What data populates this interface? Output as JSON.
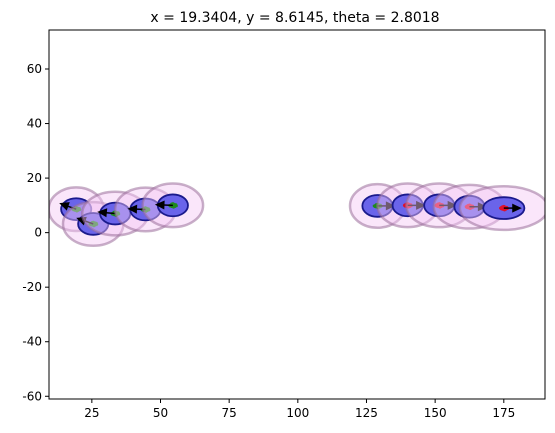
{
  "chart_data": {
    "type": "scatter",
    "title": "x = 19.3404, y = 8.6145, theta = 2.8018",
    "xlabel": "",
    "ylabel": "",
    "xlim": [
      9.4,
      190
    ],
    "ylim": [
      -61,
      74.3
    ],
    "xticks": [
      25,
      50,
      75,
      100,
      125,
      150,
      175
    ],
    "yticks": [
      -60,
      -40,
      -20,
      0,
      20,
      40,
      60
    ],
    "grid": false,
    "colors": {
      "uncertainty_fill": "#f5c8f5",
      "uncertainty_edge": "#9b6f9b",
      "robot_fill": "#6a64ea",
      "robot_edge": "#1a1a8c",
      "particle_green": "#1e8a1e",
      "particle_red": "#e0102a",
      "arrow": "#000000"
    },
    "series": [
      {
        "name": "",
        "points": [
          {
            "x": 19.3,
            "y": 8.6,
            "theta": 2.8018,
            "robot_rx": 5.5,
            "robot_ry": 4.0,
            "unc_rx": 10,
            "unc_ry": 8,
            "particle": "green"
          },
          {
            "x": 25.5,
            "y": 3.2,
            "theta": 2.8,
            "robot_rx": 5.5,
            "robot_ry": 4.0,
            "unc_rx": 11,
            "unc_ry": 8,
            "particle": "green"
          },
          {
            "x": 33.5,
            "y": 7.0,
            "theta": 3.05,
            "robot_rx": 5.5,
            "robot_ry": 4.0,
            "unc_rx": 12,
            "unc_ry": 8,
            "particle": "green"
          },
          {
            "x": 44.5,
            "y": 8.5,
            "theta": 3.1,
            "robot_rx": 5.5,
            "robot_ry": 4.0,
            "unc_rx": 11,
            "unc_ry": 8,
            "particle": "green"
          },
          {
            "x": 54.5,
            "y": 10.0,
            "theta": 3.1,
            "robot_rx": 5.5,
            "robot_ry": 4.0,
            "unc_rx": 11,
            "unc_ry": 8,
            "particle": "green"
          },
          {
            "x": 129.0,
            "y": 9.8,
            "theta": 0.0,
            "robot_rx": 5.5,
            "robot_ry": 4.0,
            "unc_rx": 10,
            "unc_ry": 8,
            "particle": "green"
          },
          {
            "x": 140.0,
            "y": 10.0,
            "theta": 0.0,
            "robot_rx": 5.5,
            "robot_ry": 4.0,
            "unc_rx": 11,
            "unc_ry": 8,
            "particle": "red"
          },
          {
            "x": 151.5,
            "y": 10.0,
            "theta": 0.0,
            "robot_rx": 5.5,
            "robot_ry": 4.0,
            "unc_rx": 12,
            "unc_ry": 8,
            "particle": "red"
          },
          {
            "x": 162.5,
            "y": 9.5,
            "theta": 0.0,
            "robot_rx": 5.5,
            "robot_ry": 4.0,
            "unc_rx": 13,
            "unc_ry": 8,
            "particle": "red"
          },
          {
            "x": 175.0,
            "y": 9.0,
            "theta": 0.0,
            "robot_rx": 7.5,
            "robot_ry": 4.0,
            "unc_rx": 16,
            "unc_ry": 8,
            "particle": "red"
          }
        ]
      }
    ]
  }
}
